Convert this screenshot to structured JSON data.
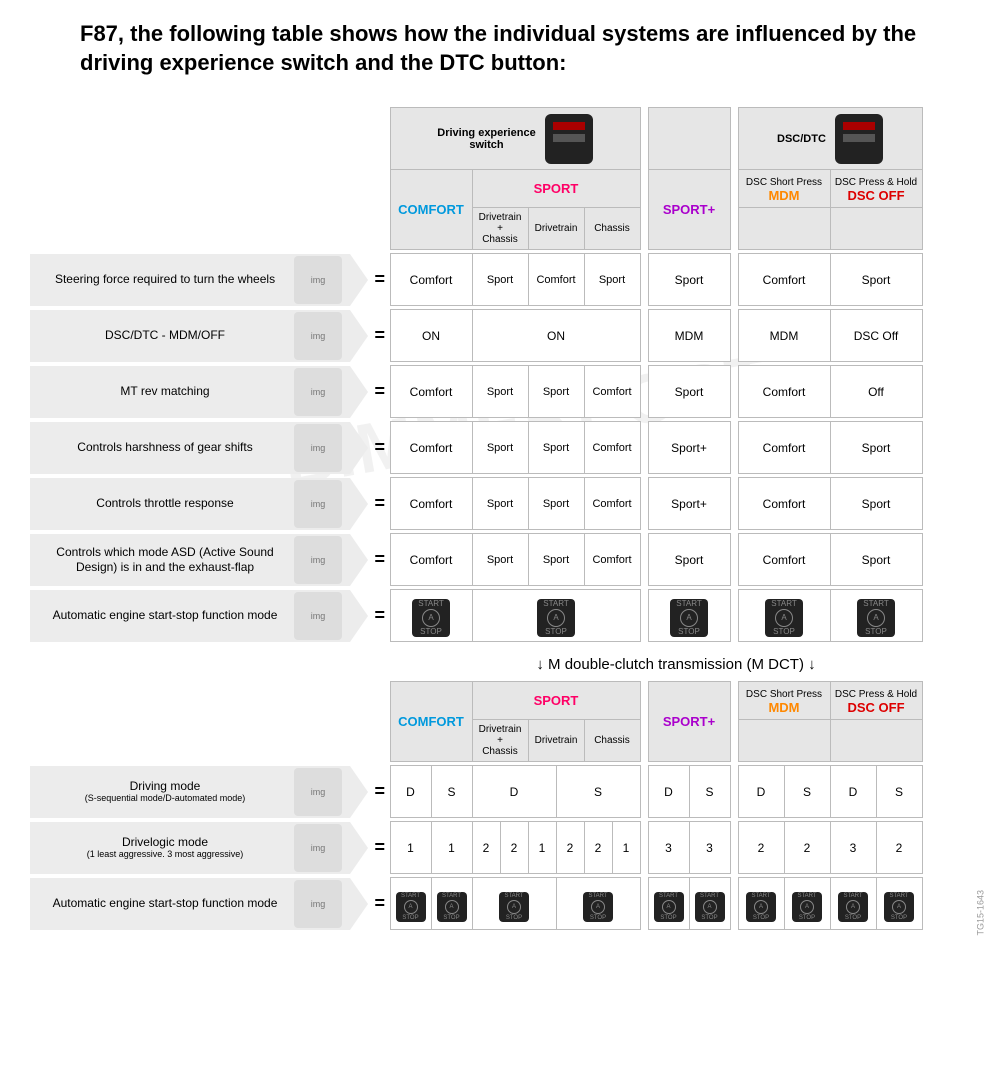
{
  "title": "F87, the following table shows how the individual systems are influenced by the driving experience switch and the DTC button:",
  "watermark": "BIMMERPOST",
  "hdrGroups": {
    "drivingExperience": "Driving experience\nswitch",
    "dscDtc": "DSC/DTC"
  },
  "modes": {
    "comfort": "COMFORT",
    "sport": "SPORT",
    "sportplus": "SPORT+",
    "mdm": "MDM",
    "dscoff": "DSC OFF",
    "dscShort": "DSC Short Press",
    "dscHold": "DSC Press & Hold",
    "sub_dc": "Drivetrain\n+\nChassis",
    "sub_d": "Drivetrain",
    "sub_c": "Chassis"
  },
  "rows1": [
    {
      "label": "Steering force required to turn the wheels",
      "cells": [
        "Comfort",
        "Sport",
        "Comfort",
        "Sport",
        "Sport",
        "Comfort",
        "Sport"
      ]
    },
    {
      "label": "DSC/DTC - MDM/OFF",
      "cells": [
        "ON",
        "@span3:ON",
        "",
        "",
        "MDM",
        "MDM",
        "DSC Off"
      ]
    },
    {
      "label": "MT rev matching",
      "cells": [
        "Comfort",
        "Sport",
        "Sport",
        "Comfort",
        "Sport",
        "Comfort",
        "Off"
      ]
    },
    {
      "label": "Controls harshness of gear shifts",
      "cells": [
        "Comfort",
        "Sport",
        "Sport",
        "Comfort",
        "Sport+",
        "Comfort",
        "Sport"
      ]
    },
    {
      "label": "Controls throttle response",
      "cells": [
        "Comfort",
        "Sport",
        "Sport",
        "Comfort",
        "Sport+",
        "Comfort",
        "Sport"
      ]
    },
    {
      "label": "Controls which mode ASD (Active Sound Design) is in and the exhaust-flap",
      "cells": [
        "Comfort",
        "Sport",
        "Sport",
        "Comfort",
        "Sport",
        "Comfort",
        "Sport"
      ]
    },
    {
      "label": "Automatic engine start-stop function mode",
      "startstop": true
    }
  ],
  "dctLabel": "↓ M double-clutch transmission (M DCT) ↓",
  "rows2": [
    {
      "label": "Driving mode",
      "sub": "(S-sequential mode/D-automated mode)",
      "pairs": [
        [
          "D",
          "S"
        ],
        [
          "D",
          ""
        ],
        [
          "",
          "S"
        ],
        [
          "D",
          "S"
        ],
        [
          "D",
          "S"
        ],
        [
          "D",
          "S"
        ]
      ],
      "split6": true,
      "sportSplit": true
    },
    {
      "label": "Drivelogic mode",
      "sub": "(1 least aggressive. 3 most aggressive)",
      "cells12": [
        "1",
        "1",
        "2",
        "2",
        "1",
        "2",
        "2",
        "1",
        "3",
        "3",
        "2",
        "2",
        "3",
        "2"
      ],
      "split12": true
    },
    {
      "label": "Automatic engine start-stop function mode",
      "startstop12": true
    }
  ],
  "footerCode": "TG15-1643",
  "colors": {
    "comfort": "#0099dd",
    "sport": "#ff0066",
    "sportplus": "#aa00cc",
    "mdm": "#ff8800",
    "dscoff": "#dd0000"
  }
}
